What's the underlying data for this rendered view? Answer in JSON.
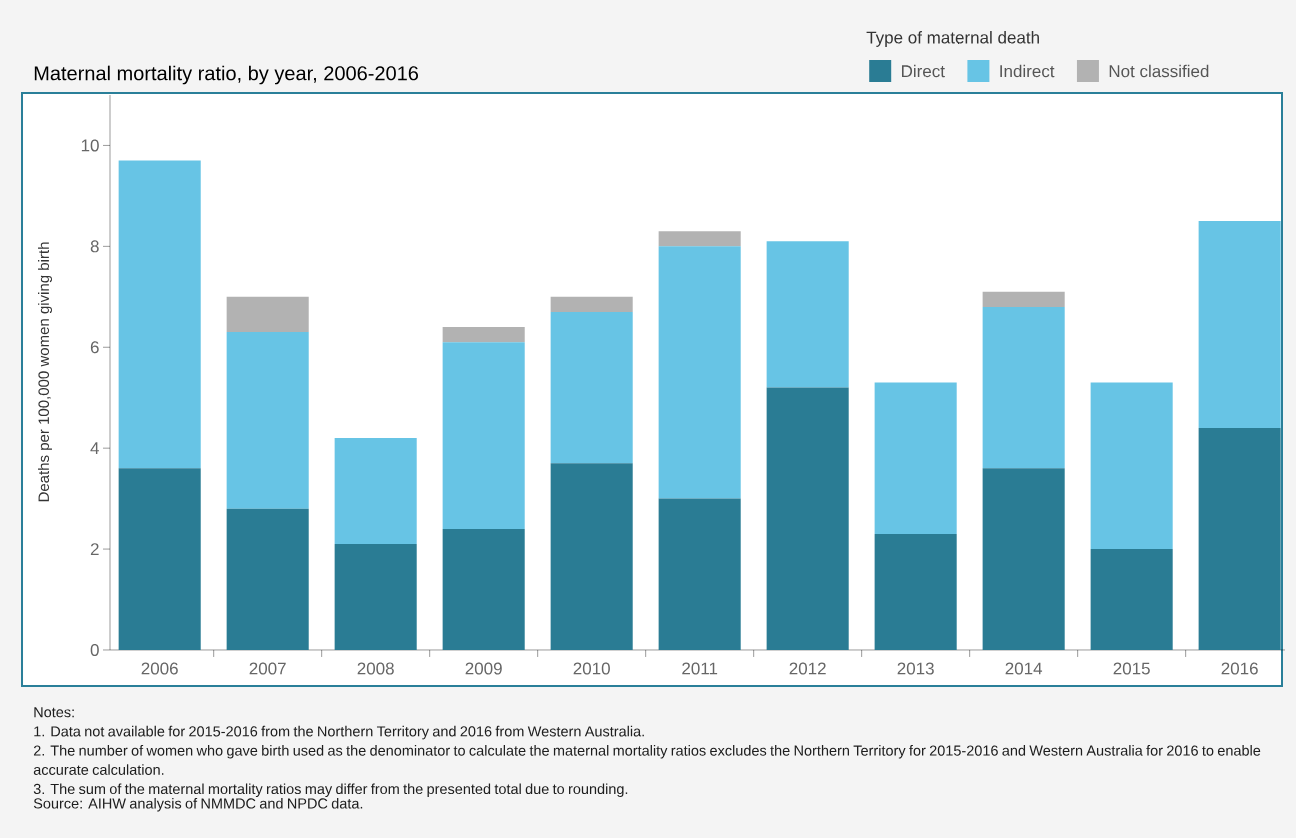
{
  "chart_data": {
    "type": "bar",
    "stacked": true,
    "title": "Maternal mortality ratio, by year, 2006-2016",
    "ylabel": "Deaths per 100,000 women giving birth",
    "legend_title": "Type of maternal death",
    "legend": "top right",
    "categories": [
      "2006",
      "2007",
      "2008",
      "2009",
      "2010",
      "2011",
      "2012",
      "2013",
      "2014",
      "2015",
      "2016"
    ],
    "series": [
      {
        "name": "Direct",
        "color": "#2a7c94",
        "values": [
          3.6,
          2.8,
          2.1,
          2.4,
          3.7,
          3.0,
          5.2,
          2.3,
          3.6,
          2.0,
          4.4
        ]
      },
      {
        "name": "Indirect",
        "color": "#67c4e5",
        "values": [
          6.1,
          3.5,
          2.1,
          3.7,
          3.0,
          5.0,
          2.9,
          3.0,
          3.2,
          3.3,
          4.1
        ]
      },
      {
        "name": "Not classified",
        "color": "#b2b2b2",
        "values": [
          0,
          0.7,
          0,
          0.3,
          0.3,
          0.3,
          0,
          0,
          0.3,
          0,
          0
        ]
      }
    ],
    "ylim": [
      0,
      11
    ],
    "yticks": [
      0,
      2,
      4,
      6,
      8,
      10
    ],
    "annotations": [
      "Notes:",
      "1. Data not available for 2015-2016 from the Northern Territory and 2016 from Western Australia.",
      "2. The number of women who gave birth used as the denominator to calculate the maternal mortality ratios excludes the Northern Territory for 2015-2016 and Western Australia for 2016 to enable accurate calculation.",
      "3. The sum of the maternal mortality ratios may differ from the presented total due to rounding.",
      "Source: AIHW analysis of NMMDC and NPDC data."
    ]
  }
}
